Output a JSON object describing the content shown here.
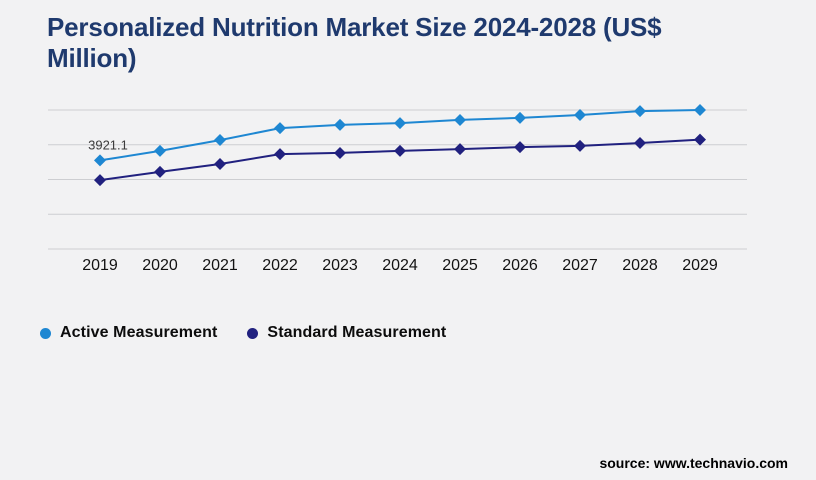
{
  "source": "source: www.technavio.com",
  "colors": {
    "background": "#f2f2f3",
    "title": "#1f3a6e",
    "gridline": "#cdced1",
    "axis_text": "#121212",
    "point_label_text": "#3b3b3b",
    "active_series": "#1e87d2",
    "standard_series": "#21217f"
  },
  "chart_data": {
    "type": "line",
    "title": "Personalized Nutrition Market Size 2024-2028 (US$ Million)",
    "xlabel": "",
    "ylabel": "",
    "categories": [
      "2019",
      "2020",
      "2021",
      "2022",
      "2023",
      "2024",
      "2025",
      "2026",
      "2027",
      "2028",
      "2029"
    ],
    "series": [
      {
        "name": "Active Measurement",
        "color": "#1e87d2",
        "marker": "diamond",
        "values": [
          3921.1,
          4340,
          4820,
          5350,
          5490,
          5570,
          5710,
          5800,
          5930,
          6100,
          6150
        ]
      },
      {
        "name": "Standard Measurement",
        "color": "#21217f",
        "marker": "diamond",
        "values": [
          3050,
          3410,
          3760,
          4200,
          4250,
          4340,
          4420,
          4510,
          4560,
          4690,
          4840
        ]
      }
    ],
    "point_labels": [
      {
        "series_index": 0,
        "category_index": 0,
        "text": "3921.1"
      }
    ],
    "ylim": [
      0,
      6150
    ],
    "y_axis_labels_visible": false,
    "grid": true,
    "gridline_count": 5,
    "legend_position": "bottom-left"
  }
}
